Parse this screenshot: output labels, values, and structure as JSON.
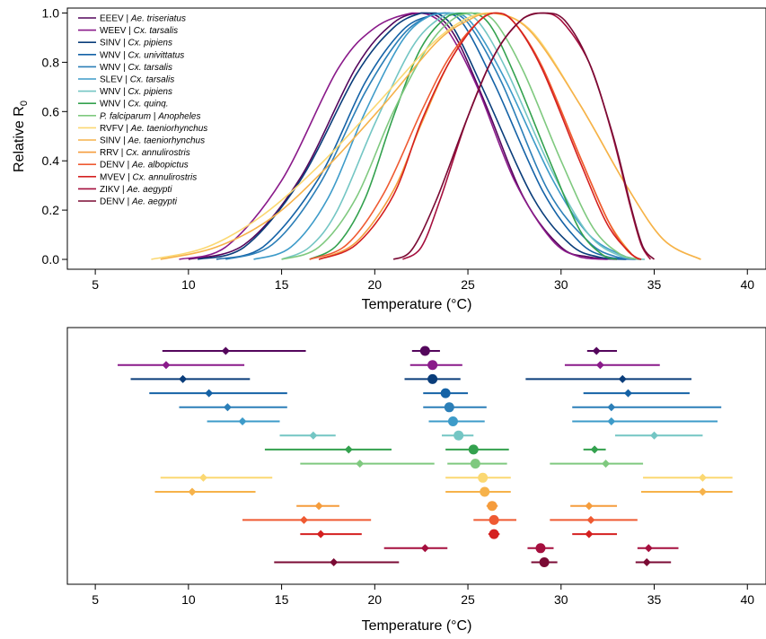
{
  "chart_data": [
    {
      "type": "line",
      "xlabel": "Temperature (°C)",
      "ylabel": "Relative R",
      "ylabel_sub": "0",
      "xlim": [
        3.5,
        41
      ],
      "ylim": [
        -0.04,
        1.02
      ],
      "xticks": [
        "5",
        "10",
        "15",
        "20",
        "25",
        "30",
        "35",
        "40"
      ],
      "yticks": [
        "0.0",
        "0.2",
        "0.4",
        "0.6",
        "0.8",
        "1.0"
      ],
      "grid": false,
      "legend_position": "top-left",
      "series": [
        {
          "name": "EEEV",
          "vector": "Ae. triseriatus",
          "color": "#54065c",
          "x": [
            10,
            13,
            16,
            19,
            21,
            22.5,
            23.5,
            24.5,
            26,
            28,
            30,
            31.5,
            33
          ],
          "y": [
            0.0,
            0.06,
            0.33,
            0.78,
            0.96,
            1.0,
            0.98,
            0.88,
            0.62,
            0.25,
            0.05,
            0.01,
            0.0
          ]
        },
        {
          "name": "WEEV",
          "vector": "Cx. tarsalis",
          "color": "#8a1a8a",
          "x": [
            9.5,
            12,
            15,
            18,
            20,
            22,
            23,
            24,
            25.5,
            27.5,
            29.5,
            31,
            32.5
          ],
          "y": [
            0.0,
            0.05,
            0.32,
            0.77,
            0.94,
            1.0,
            0.99,
            0.92,
            0.7,
            0.32,
            0.08,
            0.01,
            0.0
          ]
        },
        {
          "name": "SINV",
          "vector": "Cx. pipiens",
          "color": "#0a3d7a",
          "x": [
            10.5,
            13,
            16,
            19,
            21,
            22.5,
            23.3,
            24.3,
            26,
            28.5,
            30.5,
            32,
            33.5
          ],
          "y": [
            0.0,
            0.05,
            0.32,
            0.75,
            0.94,
            1.0,
            1.0,
            0.93,
            0.66,
            0.25,
            0.06,
            0.01,
            0.0
          ]
        },
        {
          "name": "WNV",
          "vector": "Cx. univittatus",
          "color": "#1462a6",
          "x": [
            11.5,
            14,
            17,
            19.5,
            21.5,
            23,
            23.8,
            24.8,
            26.5,
            29,
            31,
            32.5,
            34
          ],
          "y": [
            0.0,
            0.05,
            0.33,
            0.72,
            0.93,
            0.99,
            1.0,
            0.95,
            0.7,
            0.28,
            0.07,
            0.01,
            0.0
          ]
        },
        {
          "name": "WNV",
          "vector": "Cx. tarsalis",
          "color": "#2c7fb8",
          "x": [
            12,
            14.5,
            17,
            19.5,
            21.5,
            23,
            24,
            25,
            26.8,
            29.3,
            31.5,
            33,
            34.3
          ],
          "y": [
            0.0,
            0.06,
            0.3,
            0.68,
            0.91,
            0.99,
            1.0,
            0.96,
            0.72,
            0.28,
            0.07,
            0.01,
            0.0
          ]
        },
        {
          "name": "SLEV",
          "vector": "Cx. tarsalis",
          "color": "#3d9bc9",
          "x": [
            13.5,
            15.5,
            17.5,
            19.5,
            21.5,
            23,
            24.2,
            25.2,
            27,
            29.5,
            31.5,
            33.5,
            34.3
          ],
          "y": [
            0.0,
            0.05,
            0.25,
            0.6,
            0.89,
            0.99,
            1.0,
            0.96,
            0.73,
            0.33,
            0.1,
            0.01,
            0.0
          ]
        },
        {
          "name": "WNV",
          "vector": "Cx. pipiens",
          "color": "#74c6c4",
          "x": [
            15,
            16.5,
            18,
            20,
            22,
            23.5,
            24.5,
            25.5,
            27,
            29.5,
            31.5,
            33.3,
            34.5
          ],
          "y": [
            0.0,
            0.05,
            0.2,
            0.55,
            0.86,
            0.98,
            1.0,
            0.97,
            0.78,
            0.36,
            0.1,
            0.01,
            0.0
          ]
        },
        {
          "name": "WNV",
          "vector": "Cx. quinq.",
          "color": "#33a14e",
          "x": [
            16.5,
            18,
            19.5,
            21,
            22.5,
            24,
            25.2,
            26.2,
            27.5,
            29.5,
            31,
            32.2,
            33
          ],
          "y": [
            0.0,
            0.06,
            0.25,
            0.58,
            0.86,
            0.99,
            1.0,
            0.95,
            0.75,
            0.38,
            0.12,
            0.02,
            0.0
          ]
        },
        {
          "name": "P. falciparum",
          "vector": "Anopheles",
          "color": "#7fc97f",
          "x": [
            15,
            17,
            19,
            21,
            23,
            24.5,
            25.5,
            26.5,
            28,
            30,
            31.7,
            33.2,
            34.3
          ],
          "y": [
            0.0,
            0.05,
            0.25,
            0.6,
            0.88,
            0.99,
            1.0,
            0.96,
            0.76,
            0.4,
            0.13,
            0.02,
            0.0
          ]
        },
        {
          "name": "RVFV",
          "vector": "Ae. taeniorhynchus",
          "color": "#fbd872",
          "x": [
            8,
            11,
            14,
            17,
            20,
            23,
            25,
            26.5,
            28.5,
            31,
            33.5,
            35.5,
            37.5
          ],
          "y": [
            0.0,
            0.05,
            0.18,
            0.38,
            0.62,
            0.87,
            0.98,
            1.0,
            0.92,
            0.63,
            0.3,
            0.08,
            0.0
          ]
        },
        {
          "name": "SINV",
          "vector": "Ae. taeniorhynchus",
          "color": "#f6b24a",
          "x": [
            8.5,
            11.5,
            14.5,
            17.5,
            20.5,
            23.3,
            25,
            26.3,
            28.3,
            31,
            33.5,
            35.5,
            37.5
          ],
          "y": [
            0.0,
            0.05,
            0.17,
            0.38,
            0.63,
            0.88,
            0.97,
            1.0,
            0.93,
            0.63,
            0.3,
            0.08,
            0.0
          ]
        },
        {
          "name": "RRV",
          "vector": "Cx. annulirostris",
          "color": "#f59c3c",
          "x": [
            17,
            19,
            21,
            22.5,
            24,
            25.5,
            26.5,
            27.5,
            29,
            31,
            32.5,
            33.8,
            34.3
          ],
          "y": [
            0.0,
            0.07,
            0.28,
            0.55,
            0.8,
            0.96,
            1.0,
            0.96,
            0.78,
            0.42,
            0.16,
            0.02,
            0.0
          ]
        },
        {
          "name": "DENV",
          "vector": "Ae. albopictus",
          "color": "#ef5a32",
          "x": [
            16.5,
            18.5,
            20.5,
            22.5,
            24,
            25.5,
            26.5,
            27.5,
            29,
            31,
            32.5,
            33.5,
            34.2
          ],
          "y": [
            0.0,
            0.06,
            0.27,
            0.6,
            0.82,
            0.96,
            1.0,
            0.96,
            0.78,
            0.42,
            0.16,
            0.04,
            0.0
          ]
        },
        {
          "name": "MVEV",
          "vector": "Cx. annulirostris",
          "color": "#d42020",
          "x": [
            17,
            19,
            21,
            22.5,
            24,
            25.5,
            26.5,
            27.5,
            29,
            31,
            32.5,
            33.8,
            34.3
          ],
          "y": [
            0.0,
            0.06,
            0.26,
            0.56,
            0.8,
            0.96,
            1.0,
            0.96,
            0.77,
            0.4,
            0.14,
            0.02,
            0.0
          ]
        },
        {
          "name": "ZIKV",
          "vector": "Ae. aegypti",
          "color": "#a50f3e",
          "x": [
            21.5,
            22.5,
            23.5,
            25,
            26.5,
            28,
            29,
            30,
            31.5,
            32.7,
            33.7,
            34.3,
            34.8
          ],
          "y": [
            0.0,
            0.05,
            0.24,
            0.58,
            0.84,
            0.98,
            1.0,
            0.97,
            0.8,
            0.52,
            0.22,
            0.06,
            0.0
          ]
        },
        {
          "name": "DENV",
          "vector": "Ae. aegypti",
          "color": "#7a0a34",
          "x": [
            21,
            22,
            23.3,
            25,
            26.5,
            28,
            29.2,
            30.2,
            31.5,
            32.8,
            33.8,
            34.4,
            35
          ],
          "y": [
            0.0,
            0.04,
            0.24,
            0.58,
            0.84,
            0.98,
            1.0,
            0.97,
            0.8,
            0.5,
            0.2,
            0.05,
            0.0
          ]
        }
      ]
    },
    {
      "type": "scatter",
      "xlabel": "Temperature (°C)",
      "xlim": [
        3.5,
        41
      ],
      "xticks": [
        "5",
        "10",
        "15",
        "20",
        "25",
        "30",
        "35",
        "40"
      ],
      "rows": [
        {
          "color": "#54065c",
          "tmin": {
            "v": 12.0,
            "lo": 8.6,
            "hi": 16.3
          },
          "topt": {
            "v": 22.7,
            "lo": 22.0,
            "hi": 23.5
          },
          "tmax": {
            "v": 31.9,
            "lo": 31.4,
            "hi": 33.0
          }
        },
        {
          "color": "#8a1a8a",
          "tmin": {
            "v": 8.8,
            "lo": 6.2,
            "hi": 13.0
          },
          "topt": {
            "v": 23.1,
            "lo": 21.9,
            "hi": 24.7
          },
          "tmax": {
            "v": 32.1,
            "lo": 30.2,
            "hi": 35.3
          }
        },
        {
          "color": "#0a3d7a",
          "tmin": {
            "v": 9.7,
            "lo": 6.9,
            "hi": 13.3
          },
          "topt": {
            "v": 23.1,
            "lo": 21.6,
            "hi": 24.6
          },
          "tmax": {
            "v": 33.3,
            "lo": 28.1,
            "hi": 37.0
          }
        },
        {
          "color": "#1462a6",
          "tmin": {
            "v": 11.1,
            "lo": 7.9,
            "hi": 15.3
          },
          "topt": {
            "v": 23.8,
            "lo": 22.6,
            "hi": 25.0
          },
          "tmax": {
            "v": 33.6,
            "lo": 31.2,
            "hi": 36.9
          }
        },
        {
          "color": "#2c7fb8",
          "tmin": {
            "v": 12.1,
            "lo": 9.5,
            "hi": 15.3
          },
          "topt": {
            "v": 24.0,
            "lo": 22.6,
            "hi": 26.0
          },
          "tmax": {
            "v": 32.7,
            "lo": 30.6,
            "hi": 38.6
          }
        },
        {
          "color": "#3d9bc9",
          "tmin": {
            "v": 12.9,
            "lo": 11.0,
            "hi": 14.9
          },
          "topt": {
            "v": 24.2,
            "lo": 22.9,
            "hi": 25.9
          },
          "tmax": {
            "v": 32.7,
            "lo": 30.6,
            "hi": 38.4
          }
        },
        {
          "color": "#74c6c4",
          "tmin": {
            "v": 16.7,
            "lo": 14.9,
            "hi": 17.9
          },
          "topt": {
            "v": 24.5,
            "lo": 23.6,
            "hi": 25.3
          },
          "tmax": {
            "v": 35.0,
            "lo": 32.9,
            "hi": 37.6
          }
        },
        {
          "color": "#33a14e",
          "tmin": {
            "v": 18.6,
            "lo": 14.1,
            "hi": 20.9
          },
          "topt": {
            "v": 25.3,
            "lo": 23.8,
            "hi": 27.2
          },
          "tmax": {
            "v": 31.8,
            "lo": 31.2,
            "hi": 32.4
          }
        },
        {
          "color": "#7fc97f",
          "tmin": {
            "v": 19.2,
            "lo": 16.0,
            "hi": 23.2
          },
          "topt": {
            "v": 25.4,
            "lo": 23.9,
            "hi": 27.1
          },
          "tmax": {
            "v": 32.4,
            "lo": 29.4,
            "hi": 34.4
          }
        },
        {
          "color": "#fbd872",
          "tmin": {
            "v": 10.8,
            "lo": 8.5,
            "hi": 14.5
          },
          "topt": {
            "v": 25.8,
            "lo": 23.8,
            "hi": 27.3
          },
          "tmax": {
            "v": 37.6,
            "lo": 34.4,
            "hi": 39.2
          }
        },
        {
          "color": "#f6b24a",
          "tmin": {
            "v": 10.2,
            "lo": 8.2,
            "hi": 13.6
          },
          "topt": {
            "v": 25.9,
            "lo": 23.8,
            "hi": 27.3
          },
          "tmax": {
            "v": 37.6,
            "lo": 34.3,
            "hi": 39.2
          }
        },
        {
          "color": "#f59c3c",
          "tmin": {
            "v": 17.0,
            "lo": 15.8,
            "hi": 18.1
          },
          "topt": {
            "v": 26.3,
            "lo": 26.0,
            "hi": 26.6
          },
          "tmax": {
            "v": 31.5,
            "lo": 30.5,
            "hi": 33.0
          }
        },
        {
          "color": "#ef5a32",
          "tmin": {
            "v": 16.2,
            "lo": 12.9,
            "hi": 19.8
          },
          "topt": {
            "v": 26.4,
            "lo": 25.3,
            "hi": 27.6
          },
          "tmax": {
            "v": 31.6,
            "lo": 29.4,
            "hi": 34.1
          }
        },
        {
          "color": "#d42020",
          "tmin": {
            "v": 17.1,
            "lo": 16.0,
            "hi": 19.3
          },
          "topt": {
            "v": 26.4,
            "lo": 26.1,
            "hi": 26.7
          },
          "tmax": {
            "v": 31.5,
            "lo": 30.6,
            "hi": 33.0
          }
        },
        {
          "color": "#a50f3e",
          "tmin": {
            "v": 22.7,
            "lo": 20.5,
            "hi": 23.9
          },
          "topt": {
            "v": 28.9,
            "lo": 28.2,
            "hi": 29.6
          },
          "tmax": {
            "v": 34.7,
            "lo": 34.1,
            "hi": 36.3
          }
        },
        {
          "color": "#7a0a34",
          "tmin": {
            "v": 17.8,
            "lo": 14.6,
            "hi": 21.3
          },
          "topt": {
            "v": 29.1,
            "lo": 28.4,
            "hi": 29.8
          },
          "tmax": {
            "v": 34.6,
            "lo": 34.0,
            "hi": 35.9
          }
        }
      ]
    }
  ]
}
